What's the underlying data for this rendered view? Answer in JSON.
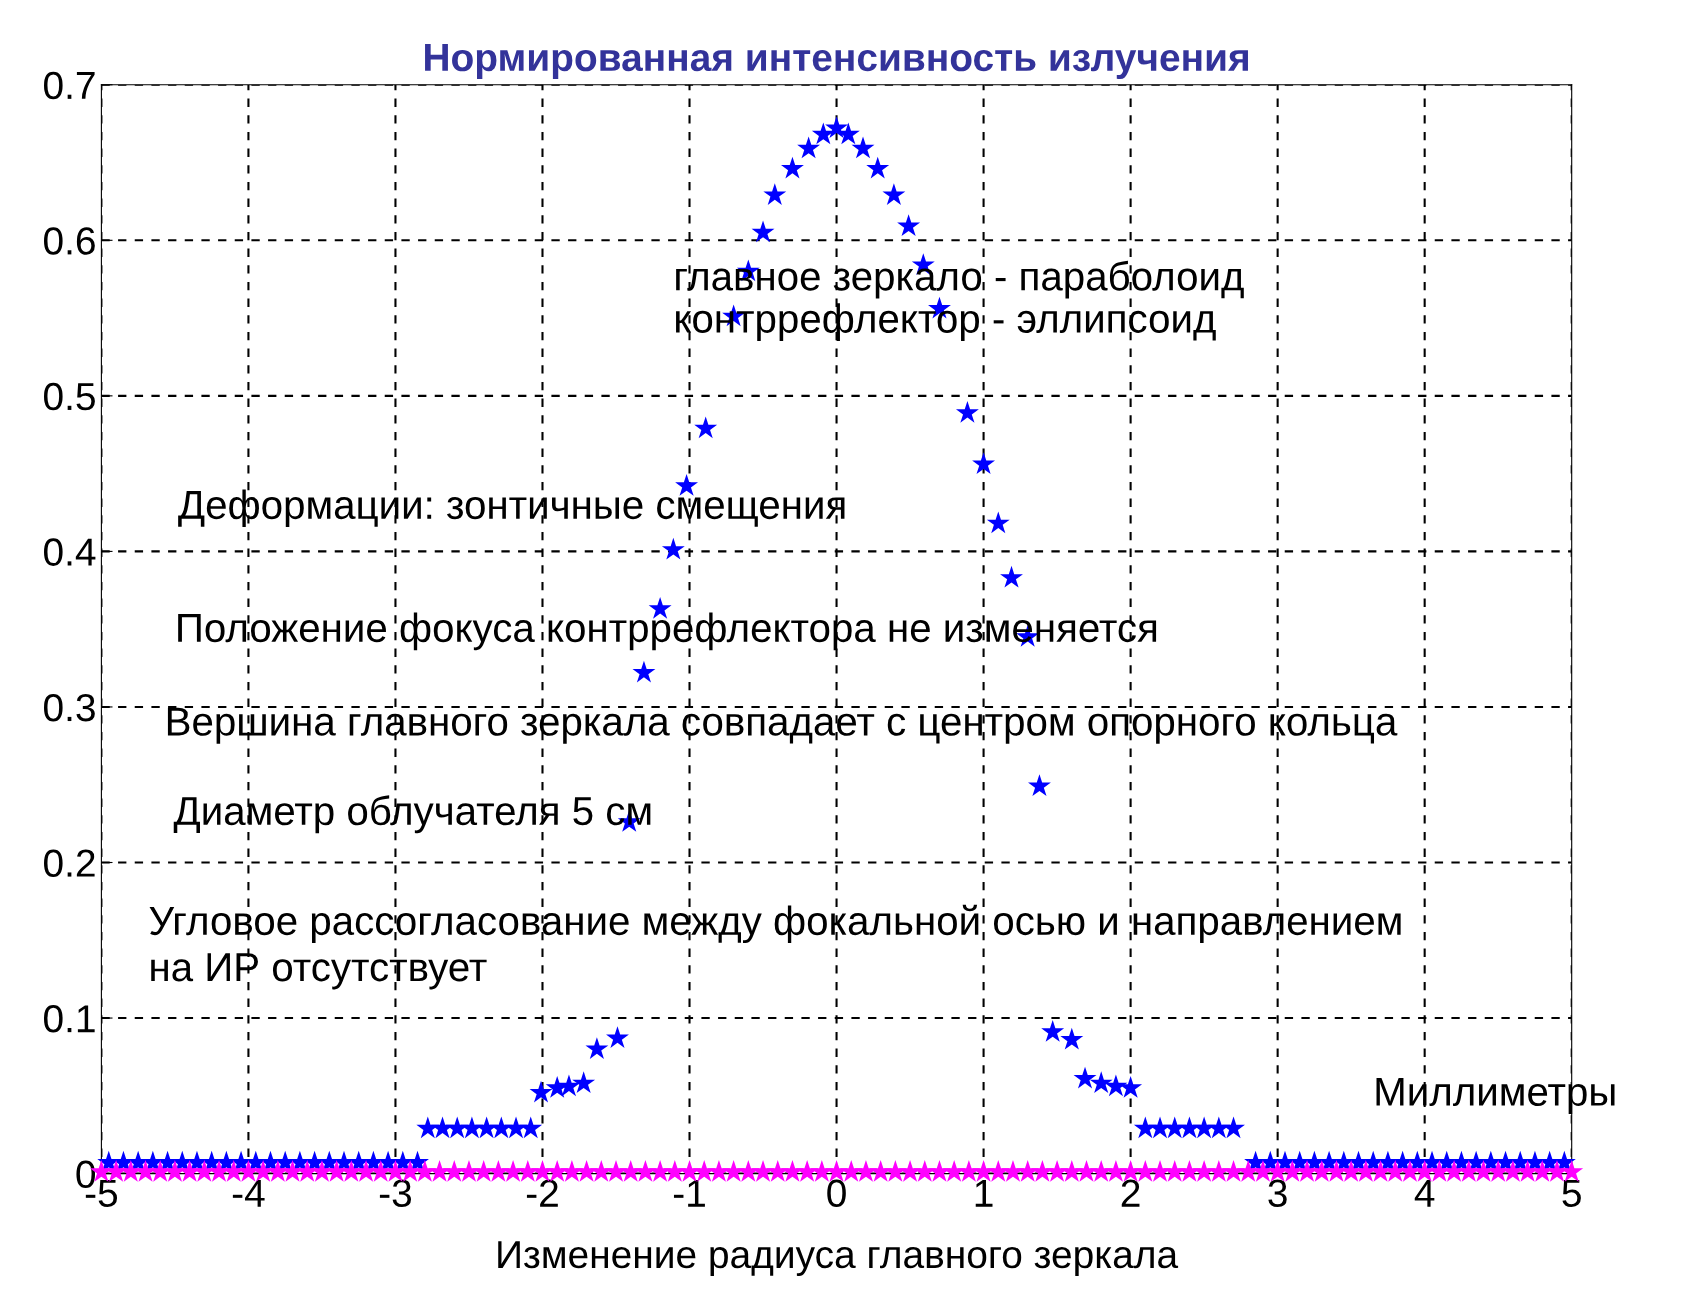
{
  "chart_data": {
    "type": "scatter",
    "title": "Нормированная интенсивность излучения",
    "xlabel": "Изменение радиуса главного зеркала",
    "annotations": [
      "главное зеркало - параболоид",
      "контррефлектор - эллипсоид",
      "Деформации: зонтичные смещения",
      "Положение фокуса контррефлектора не изменяется",
      "Вершина главного зеркала совпадает с центром опорного кольца",
      "Диаметр облучателя 5 см",
      "Угловое рассогласование между фокальной осью и направлением\nна ИР отсутствует",
      "Миллиметры"
    ],
    "xlim": [
      -5,
      5
    ],
    "xticks": [
      -5,
      -4,
      -3,
      -2,
      -1,
      0,
      1,
      2,
      3,
      4,
      5
    ],
    "ylim": [
      0,
      0.7
    ],
    "yticks": [
      {
        "value": 0,
        "label": "0"
      },
      0.1,
      0.2,
      0.3,
      0.4,
      0.5,
      0.6,
      0.7
    ],
    "grid": true,
    "marker": "star",
    "series": [
      {
        "color": "#0000ff",
        "x": [
          -4.95,
          -4.85,
          -4.75,
          -4.65,
          -4.55,
          -4.45,
          -4.35,
          -4.25,
          -4.15,
          -4.05,
          -3.95,
          -3.85,
          -3.75,
          -3.65,
          -3.55,
          -3.45,
          -3.35,
          -3.25,
          -3.15,
          -3.05,
          -2.95,
          -2.85,
          -2.78,
          -2.68,
          -2.58,
          -2.48,
          -2.38,
          -2.28,
          -2.18,
          -2.08,
          -2.01,
          -1.9,
          -1.82,
          -1.72,
          -1.63,
          -1.49,
          -1.41,
          -1.31,
          -1.2,
          -1.11,
          -1.02,
          -0.89,
          -0.7,
          -0.6,
          -0.5,
          -0.42,
          -0.3,
          -0.19,
          -0.09,
          0.0,
          0.08,
          0.18,
          0.28,
          0.39,
          0.49,
          0.59,
          0.7,
          0.89,
          1.0,
          1.1,
          1.19,
          1.3,
          1.38,
          1.47,
          1.6,
          1.69,
          1.8,
          1.9,
          2.0,
          2.1,
          2.2,
          2.3,
          2.4,
          2.5,
          2.6,
          2.7,
          2.85,
          2.95,
          3.05,
          3.15,
          3.25,
          3.35,
          3.45,
          3.55,
          3.65,
          3.75,
          3.85,
          3.95,
          4.05,
          4.15,
          4.25,
          4.35,
          4.45,
          4.55,
          4.65,
          4.75,
          4.85,
          4.95
        ],
        "values": [
          0.007,
          0.007,
          0.007,
          0.007,
          0.007,
          0.007,
          0.007,
          0.007,
          0.007,
          0.007,
          0.007,
          0.007,
          0.007,
          0.007,
          0.007,
          0.007,
          0.007,
          0.007,
          0.007,
          0.007,
          0.007,
          0.007,
          0.029,
          0.029,
          0.029,
          0.029,
          0.029,
          0.029,
          0.029,
          0.029,
          0.052,
          0.055,
          0.056,
          0.058,
          0.08,
          0.087,
          0.226,
          0.322,
          0.363,
          0.401,
          0.442,
          0.479,
          0.551,
          0.58,
          0.605,
          0.629,
          0.646,
          0.659,
          0.668,
          0.672,
          0.668,
          0.659,
          0.646,
          0.629,
          0.609,
          0.584,
          0.556,
          0.489,
          0.456,
          0.418,
          0.383,
          0.345,
          0.249,
          0.091,
          0.086,
          0.061,
          0.058,
          0.056,
          0.055,
          0.029,
          0.029,
          0.029,
          0.029,
          0.029,
          0.029,
          0.029,
          0.007,
          0.007,
          0.007,
          0.007,
          0.007,
          0.007,
          0.007,
          0.007,
          0.007,
          0.007,
          0.007,
          0.007,
          0.007,
          0.007,
          0.007,
          0.007,
          0.007,
          0.007,
          0.007,
          0.007,
          0.007,
          0.007
        ]
      },
      {
        "color": "#ff00ff",
        "x": [
          -5.0,
          -4.9,
          -4.8,
          -4.7,
          -4.6,
          -4.5,
          -4.4,
          -4.3,
          -4.2,
          -4.1,
          -4.0,
          -3.9,
          -3.8,
          -3.7,
          -3.6,
          -3.5,
          -3.4,
          -3.3,
          -3.2,
          -3.1,
          -3.0,
          -2.9,
          -2.8,
          -2.7,
          -2.6,
          -2.5,
          -2.4,
          -2.3,
          -2.2,
          -2.1,
          -2.0,
          -1.9,
          -1.8,
          -1.7,
          -1.6,
          -1.5,
          -1.4,
          -1.3,
          -1.2,
          -1.1,
          -1.0,
          -0.9,
          -0.8,
          -0.7,
          -0.6,
          -0.5,
          -0.4,
          -0.3,
          -0.2,
          -0.1,
          0.0,
          0.1,
          0.2,
          0.3,
          0.4,
          0.5,
          0.6,
          0.7,
          0.8,
          0.9,
          1.0,
          1.1,
          1.2,
          1.3,
          1.4,
          1.5,
          1.6,
          1.7,
          1.8,
          1.9,
          2.0,
          2.1,
          2.2,
          2.3,
          2.4,
          2.5,
          2.6,
          2.7,
          2.8,
          2.9,
          3.0,
          3.1,
          3.2,
          3.3,
          3.4,
          3.5,
          3.6,
          3.7,
          3.8,
          3.9,
          4.0,
          4.1,
          4.2,
          4.3,
          4.4,
          4.5,
          4.6,
          4.7,
          4.8,
          4.9,
          5.0
        ],
        "values": [
          0.001,
          0.001,
          0.001,
          0.001,
          0.001,
          0.001,
          0.001,
          0.001,
          0.001,
          0.001,
          0.001,
          0.001,
          0.001,
          0.001,
          0.001,
          0.001,
          0.001,
          0.001,
          0.001,
          0.001,
          0.001,
          0.001,
          0.001,
          0.001,
          0.001,
          0.001,
          0.001,
          0.001,
          0.001,
          0.001,
          0.001,
          0.001,
          0.001,
          0.001,
          0.001,
          0.001,
          0.001,
          0.001,
          0.001,
          0.001,
          0.001,
          0.001,
          0.001,
          0.001,
          0.001,
          0.001,
          0.001,
          0.001,
          0.001,
          0.001,
          0.001,
          0.001,
          0.001,
          0.001,
          0.001,
          0.001,
          0.001,
          0.001,
          0.001,
          0.001,
          0.001,
          0.001,
          0.001,
          0.001,
          0.001,
          0.001,
          0.001,
          0.001,
          0.001,
          0.001,
          0.001,
          0.001,
          0.001,
          0.001,
          0.001,
          0.001,
          0.001,
          0.001,
          0.001,
          0.001,
          0.001,
          0.001,
          0.001,
          0.001,
          0.001,
          0.001,
          0.001,
          0.001,
          0.001,
          0.001,
          0.001,
          0.001,
          0.001,
          0.001,
          0.001,
          0.001,
          0.001,
          0.001,
          0.001,
          0.001,
          0.001
        ]
      }
    ]
  }
}
